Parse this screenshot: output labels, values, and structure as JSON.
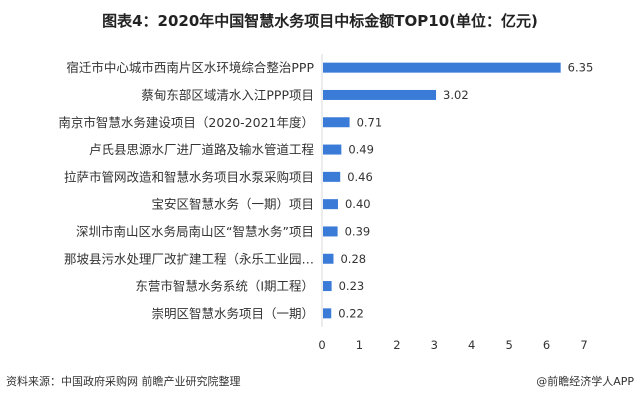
{
  "chart_data": {
    "type": "bar",
    "orientation": "horizontal",
    "title": "图表4：2020年中国智慧水务项目中标金额TOP10(单位：亿元)",
    "categories": [
      "宿迁市中心城市西南片区水环境综合整治PPP",
      "蔡甸东部区域清水入江PPP项目",
      "南京市智慧水务建设项目（2020-2021年度）",
      "卢氏县思源水厂进厂道路及输水管道工程",
      "拉萨市管网改造和智慧水务项目水泵采购项目",
      "宝安区智慧水务（一期）项目",
      "深圳市南山区水务局南山区“智慧水务”项目",
      "那坡县污水处理厂改扩建工程（永乐工业园…",
      "东营市智慧水务系统（Ⅰ期工程）",
      "崇明区智慧水务项目（一期）"
    ],
    "values": [
      6.35,
      3.02,
      0.71,
      0.49,
      0.46,
      0.4,
      0.39,
      0.28,
      0.23,
      0.22
    ],
    "value_labels": [
      "6.35",
      "3.02",
      "0.71",
      "0.49",
      "0.46",
      "0.40",
      "0.39",
      "0.28",
      "0.23",
      "0.22"
    ],
    "xlim": [
      0,
      7
    ],
    "xticks": [
      "0",
      "1",
      "2",
      "3",
      "4",
      "5",
      "6",
      "7"
    ],
    "grid": false,
    "bar_color": "#3a7bd8",
    "xlabel": "",
    "ylabel": ""
  },
  "footer": {
    "source": "资料来源：中国政府采购网 前瞻产业研究院整理",
    "brand": "@前瞻经济学人APP"
  }
}
